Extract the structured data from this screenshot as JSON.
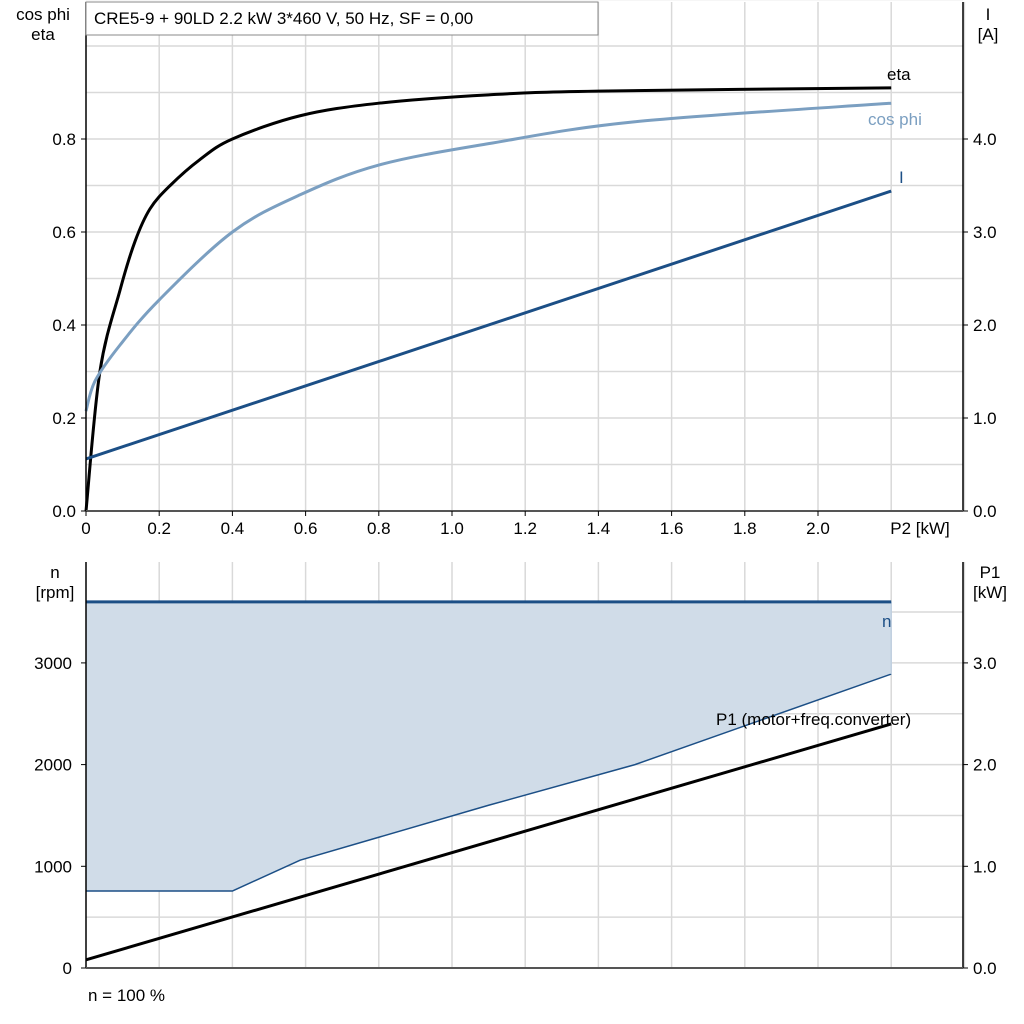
{
  "chart_data": [
    {
      "type": "line",
      "title": "CRE5-9 + 90LD   2.2 kW   3*460 V, 50 Hz, SF = 0,00",
      "xlabel": "P2 [kW]",
      "ylabel_left": [
        "cos phi",
        "eta"
      ],
      "ylabel_right": [
        "I",
        "[A]"
      ],
      "xlim": [
        0,
        2.4
      ],
      "ylim_left": [
        0,
        1.1
      ],
      "ylim_right": [
        0,
        5.5
      ],
      "grid": true,
      "x_ticks": [
        "0",
        "0.2",
        "0.4",
        "0.6",
        "0.8",
        "1.0",
        "1.2",
        "1.4",
        "1.6",
        "1.8",
        "2.0"
      ],
      "y_ticks_left": [
        "0.0",
        "0.2",
        "0.4",
        "0.6",
        "0.8"
      ],
      "y_ticks_right": [
        "0.0",
        "1.0",
        "2.0",
        "3.0",
        "4.0"
      ],
      "series": [
        {
          "name": "eta",
          "axis": "left",
          "color": "#000000",
          "x": [
            0,
            0.038,
            0.093,
            0.134,
            0.175,
            0.23,
            0.31,
            0.4,
            0.585,
            0.8,
            1.1,
            1.4,
            2.2
          ],
          "y": [
            0,
            0.3,
            0.475,
            0.58,
            0.65,
            0.7,
            0.755,
            0.8,
            0.85,
            0.877,
            0.895,
            0.903,
            0.91
          ]
        },
        {
          "name": "cos phi",
          "axis": "left",
          "color": "#7b9fc1",
          "x": [
            0,
            0.025,
            0.093,
            0.2,
            0.4,
            0.585,
            0.8,
            1.1,
            1.5,
            2.2
          ],
          "y": [
            0.215,
            0.28,
            0.357,
            0.454,
            0.6,
            0.68,
            0.744,
            0.79,
            0.837,
            0.877
          ]
        },
        {
          "name": "I",
          "axis": "right",
          "color": "#1c4f86",
          "x": [
            0,
            2.2
          ],
          "y": [
            0.56,
            3.44
          ]
        }
      ]
    },
    {
      "type": "area",
      "xlim": [
        0,
        2.4
      ],
      "ylabel_left": [
        "n",
        "[rpm]"
      ],
      "ylabel_right": [
        "P1",
        "[kW]"
      ],
      "ylim_left": [
        0,
        4000
      ],
      "ylim_right": [
        0,
        4.0
      ],
      "grid": true,
      "y_ticks_left": [
        "0",
        "1000",
        "2000",
        "3000"
      ],
      "y_ticks_right": [
        "0.0",
        "1.0",
        "2.0",
        "3.0"
      ],
      "footer": "n = 100 %",
      "n_range": {
        "name": "n",
        "color": "#1c4f86",
        "fill": "#d0dce8",
        "max": {
          "x": [
            0,
            2.2
          ],
          "y": [
            3600,
            3600
          ]
        },
        "min": {
          "x": [
            0,
            0.4,
            0.585,
            1.1,
            1.5,
            2.2
          ],
          "y": [
            757,
            757,
            1060,
            1600,
            2000,
            2890
          ]
        }
      },
      "series": [
        {
          "name": "P1 (motor+freq.converter)",
          "axis": "right",
          "color": "#000000",
          "x": [
            0,
            2.2
          ],
          "y": [
            0.08,
            2.4
          ]
        }
      ]
    }
  ]
}
